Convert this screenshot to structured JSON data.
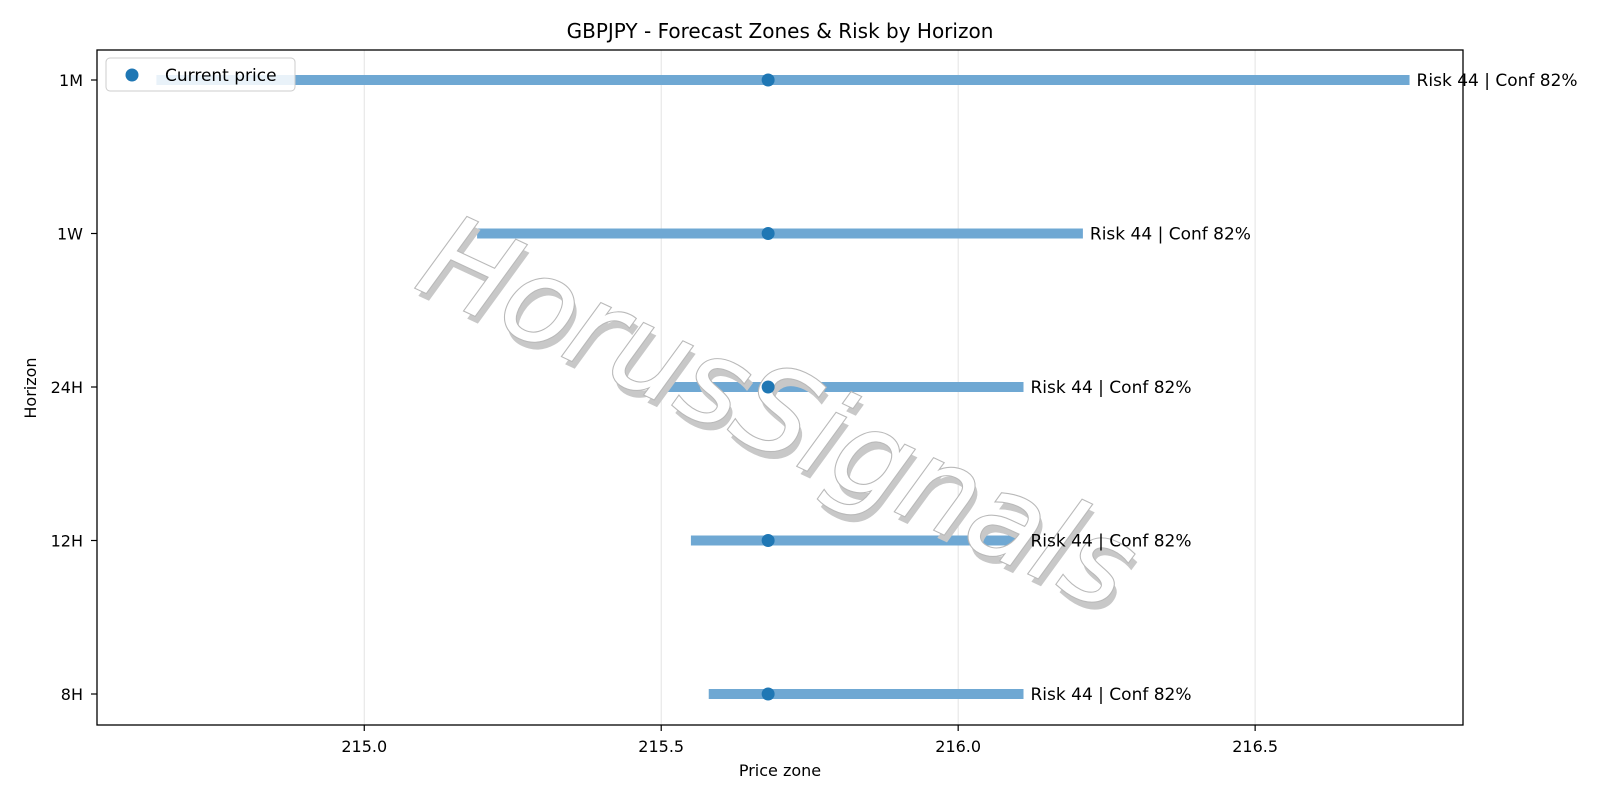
{
  "chart_data": {
    "type": "range",
    "title": "GBPJPY - Forecast Zones & Risk by Horizon",
    "xlabel": "Price zone",
    "ylabel": "Horizon",
    "xlim": [
      214.55,
      216.85
    ],
    "xticks": [
      215.0,
      215.5,
      216.0,
      216.5
    ],
    "xtick_labels": [
      "215.0",
      "215.5",
      "216.0",
      "216.5"
    ],
    "grid": "vertical",
    "legend": {
      "placement": "top-left",
      "entries": [
        {
          "label": "Current price",
          "marker": "dot"
        }
      ]
    },
    "watermark": "HorusSignals",
    "current_price": 215.68,
    "colors": {
      "bar": "#6fa8d3",
      "marker": "#1f77b4",
      "grid": "#e3e3e3"
    },
    "categories": [
      "1M",
      "1W",
      "24H",
      "12H",
      "8H"
    ],
    "series": [
      {
        "horizon": "1M",
        "low": 214.65,
        "high": 216.76,
        "annotation": "Risk 44 | Conf 82%"
      },
      {
        "horizon": "1W",
        "low": 215.19,
        "high": 216.21,
        "annotation": "Risk 44 | Conf 82%"
      },
      {
        "horizon": "24H",
        "low": 215.5,
        "high": 216.11,
        "annotation": "Risk 44 | Conf 82%"
      },
      {
        "horizon": "12H",
        "low": 215.55,
        "high": 216.11,
        "annotation": "Risk 44 | Conf 82%"
      },
      {
        "horizon": "8H",
        "low": 215.58,
        "high": 216.11,
        "annotation": "Risk 44 | Conf 82%"
      }
    ]
  }
}
